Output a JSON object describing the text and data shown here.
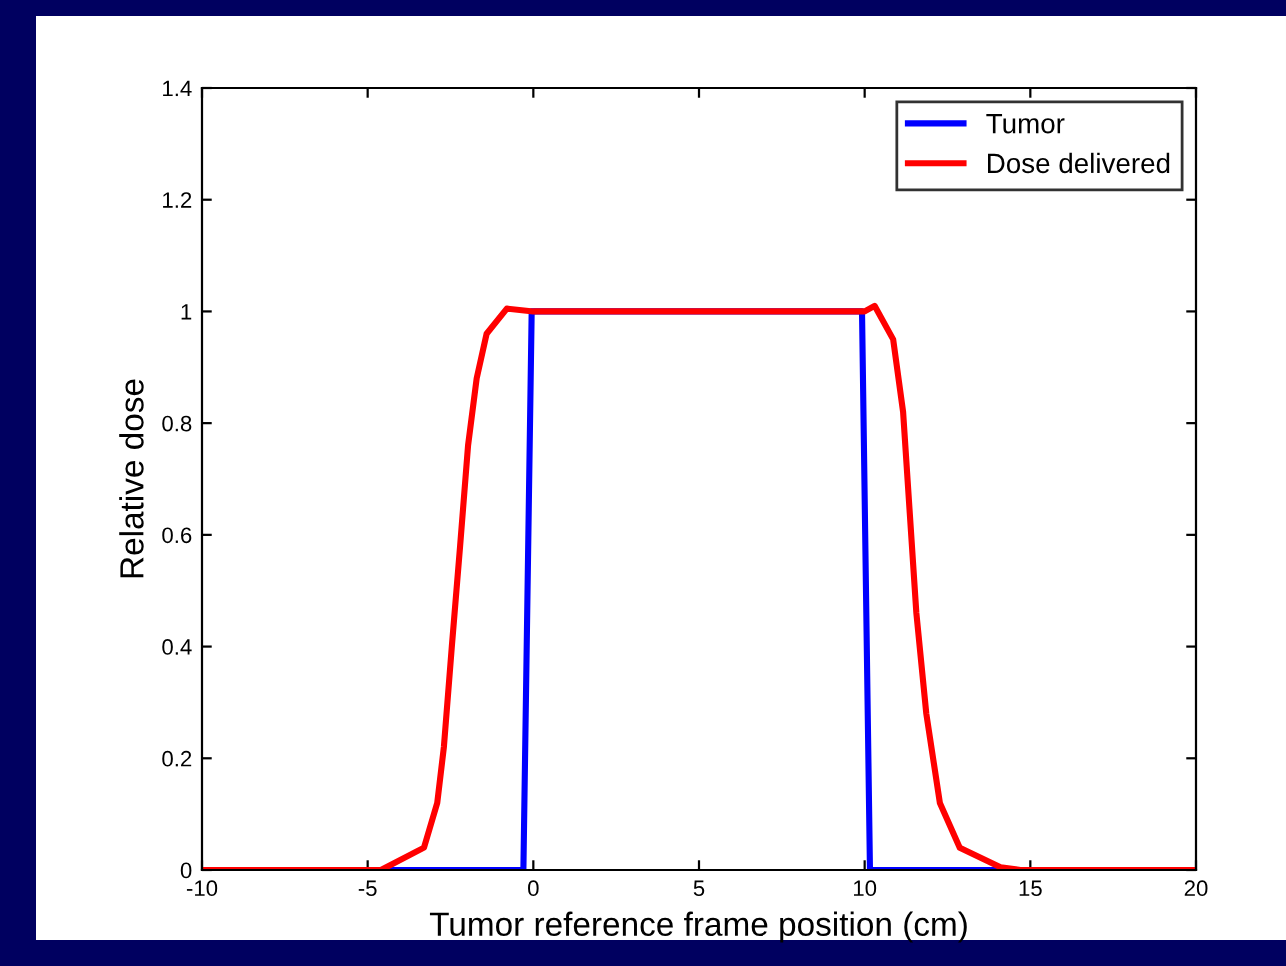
{
  "chart_data": {
    "type": "line",
    "xlabel": "Tumor reference frame position (cm)",
    "ylabel": "Relative dose",
    "xlim": [
      -10,
      20
    ],
    "ylim": [
      0,
      1.4
    ],
    "xticks": [
      -10,
      -5,
      0,
      5,
      10,
      15,
      20
    ],
    "yticks": [
      0,
      0.2,
      0.4,
      0.6,
      0.8,
      1,
      1.2,
      1.4
    ],
    "grid": false,
    "legend": "top right",
    "line_style": "solid",
    "marker": "none",
    "series": [
      {
        "name": "Tumor",
        "color": "#0000ff",
        "x": [
          -10,
          -0.3,
          -0.05,
          9.92,
          10.16,
          20
        ],
        "values": [
          0,
          0,
          1,
          1,
          0,
          0
        ]
      },
      {
        "name": "Dose delivered",
        "color": "#ff0000",
        "x": [
          -10,
          -4.6,
          -3.3,
          -2.9,
          -2.7,
          -2.46,
          -2.21,
          -1.97,
          -1.71,
          -1.41,
          -0.8,
          0,
          5,
          10,
          10.3,
          10.86,
          11.16,
          11.36,
          11.56,
          11.86,
          12.27,
          12.87,
          14.1,
          14.7,
          20
        ],
        "values": [
          0,
          0,
          0.04,
          0.12,
          0.22,
          0.4,
          0.58,
          0.76,
          0.88,
          0.96,
          1.005,
          1,
          1,
          1,
          1.01,
          0.95,
          0.82,
          0.64,
          0.46,
          0.28,
          0.12,
          0.04,
          0.005,
          0,
          0
        ]
      }
    ]
  }
}
